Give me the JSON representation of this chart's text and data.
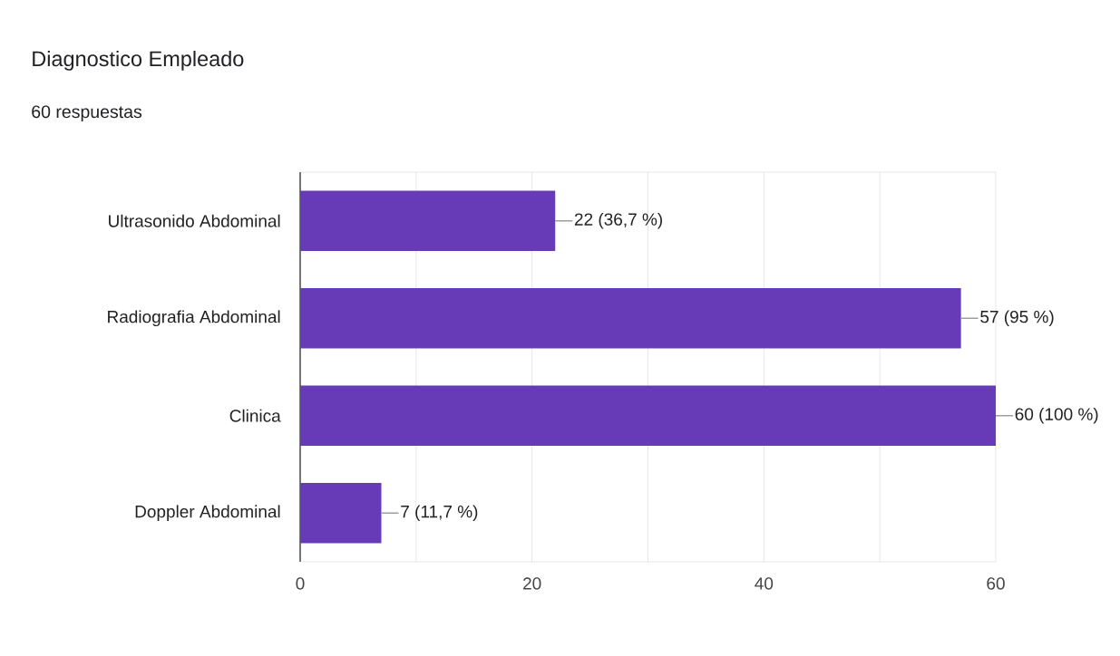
{
  "chart_data": {
    "type": "bar",
    "orientation": "horizontal",
    "title": "Diagnostico Empleado",
    "subtitle": "60 respuestas",
    "categories": [
      "Ultrasonido Abdominal",
      "Radiografia Abdominal",
      "Clinica",
      "Doppler Abdominal"
    ],
    "values": [
      22,
      57,
      60,
      7
    ],
    "color": "#673ab7",
    "value_labels": [
      "22 (36,7 %)",
      "57 (95 %)",
      "60 (100 %)",
      "7 (11,7 %)"
    ],
    "xlim": [
      0,
      60
    ],
    "xticks": [
      0,
      {
        "value": 10,
        "label": null
      },
      20,
      {
        "value": 30,
        "label": null
      },
      40,
      {
        "value": 50,
        "label": null
      },
      60
    ],
    "grid": "x"
  }
}
